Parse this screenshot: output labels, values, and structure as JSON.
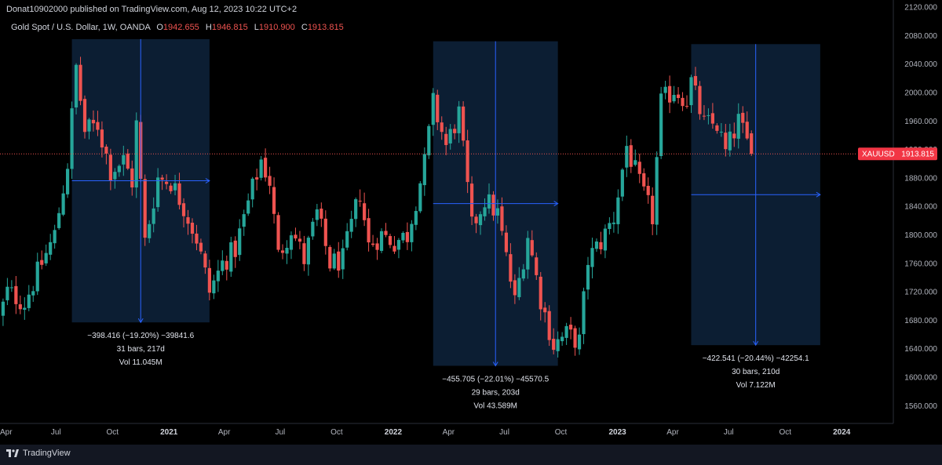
{
  "header": {
    "publisher": "Donat10902000 published on TradingView.com, Aug 12, 2023 10:22 UTC+2"
  },
  "legend": {
    "symbol": "Gold Spot / U.S. Dollar, 1W, OANDA",
    "open_label": "O",
    "open": "1942.655",
    "high_label": "H",
    "high": "1946.815",
    "low_label": "L",
    "low": "1910.900",
    "close_label": "C",
    "close": "1913.815"
  },
  "footer": {
    "brand": "TradingView"
  },
  "colors": {
    "up": "#26a69a",
    "down": "#ef5350",
    "range_fill": "#0c1e33",
    "range_line": "#2962ff"
  },
  "chart_data": {
    "type": "candlestick",
    "price_axis": {
      "range": [
        1535,
        2130
      ],
      "ticks": [
        "2120.000",
        "2080.000",
        "2040.000",
        "2000.000",
        "1960.000",
        "1920.000",
        "1880.000",
        "1840.000",
        "1800.000",
        "1760.000",
        "1720.000",
        "1680.000",
        "1640.000",
        "1600.000",
        "1560.000"
      ]
    },
    "time_axis": {
      "range": [
        "2020-04-01",
        "2024-03-25"
      ],
      "ticks": [
        {
          "date": "2020-04-01",
          "label": "Apr",
          "bold": false
        },
        {
          "date": "2020-07-01",
          "label": "Jul",
          "bold": false
        },
        {
          "date": "2020-10-01",
          "label": "Oct",
          "bold": false
        },
        {
          "date": "2021-01-01",
          "label": "2021",
          "bold": true
        },
        {
          "date": "2021-04-01",
          "label": "Apr",
          "bold": false
        },
        {
          "date": "2021-07-01",
          "label": "Jul",
          "bold": false
        },
        {
          "date": "2021-10-01",
          "label": "Oct",
          "bold": false
        },
        {
          "date": "2022-01-01",
          "label": "2022",
          "bold": true
        },
        {
          "date": "2022-04-01",
          "label": "Apr",
          "bold": false
        },
        {
          "date": "2022-07-01",
          "label": "Jul",
          "bold": false
        },
        {
          "date": "2022-10-01",
          "label": "Oct",
          "bold": false
        },
        {
          "date": "2023-01-01",
          "label": "2023",
          "bold": true
        },
        {
          "date": "2023-04-01",
          "label": "Apr",
          "bold": false
        },
        {
          "date": "2023-07-01",
          "label": "Jul",
          "bold": false
        },
        {
          "date": "2023-10-01",
          "label": "Oct",
          "bold": false
        },
        {
          "date": "2024-01-01",
          "label": "2024",
          "bold": true
        }
      ]
    },
    "price_tag": {
      "symbol": "XAUUSD",
      "value": "1913.815",
      "price": 1913.815
    },
    "path_points": [
      [
        "2020-03-23",
        1660
      ],
      [
        "2020-04-13",
        1720
      ],
      [
        "2020-05-11",
        1705
      ],
      [
        "2020-06-08",
        1760
      ],
      [
        "2020-06-29",
        1800
      ],
      [
        "2020-07-20",
        1900
      ],
      [
        "2020-08-03",
        2035
      ],
      [
        "2020-08-17",
        1945
      ],
      [
        "2020-09-07",
        1955
      ],
      [
        "2020-09-28",
        1890
      ],
      [
        "2020-10-19",
        1905
      ],
      [
        "2020-11-02",
        1875
      ],
      [
        "2020-11-09",
        1955
      ],
      [
        "2020-11-23",
        1790
      ],
      [
        "2020-12-14",
        1880
      ],
      [
        "2021-01-04",
        1875
      ],
      [
        "2021-01-25",
        1840
      ],
      [
        "2021-02-15",
        1795
      ],
      [
        "2021-03-08",
        1720
      ],
      [
        "2021-03-29",
        1760
      ],
      [
        "2021-04-19",
        1780
      ],
      [
        "2021-05-10",
        1845
      ],
      [
        "2021-05-31",
        1905
      ],
      [
        "2021-06-14",
        1875
      ],
      [
        "2021-06-28",
        1770
      ],
      [
        "2021-07-19",
        1810
      ],
      [
        "2021-08-09",
        1765
      ],
      [
        "2021-08-30",
        1830
      ],
      [
        "2021-09-20",
        1760
      ],
      [
        "2021-10-11",
        1765
      ],
      [
        "2021-11-08",
        1860
      ],
      [
        "2021-11-22",
        1785
      ],
      [
        "2021-12-13",
        1800
      ],
      [
        "2022-01-03",
        1790
      ],
      [
        "2022-01-24",
        1800
      ],
      [
        "2022-02-21",
        1900
      ],
      [
        "2022-03-07",
        1985
      ],
      [
        "2022-03-28",
        1925
      ],
      [
        "2022-04-18",
        1970
      ],
      [
        "2022-05-09",
        1810
      ],
      [
        "2022-05-30",
        1850
      ],
      [
        "2022-06-20",
        1830
      ],
      [
        "2022-07-18",
        1705
      ],
      [
        "2022-08-08",
        1800
      ],
      [
        "2022-08-29",
        1710
      ],
      [
        "2022-09-19",
        1645
      ],
      [
        "2022-10-10",
        1660
      ],
      [
        "2022-10-31",
        1650
      ],
      [
        "2022-11-14",
        1765
      ],
      [
        "2022-12-05",
        1790
      ],
      [
        "2022-12-26",
        1825
      ],
      [
        "2023-01-16",
        1925
      ],
      [
        "2023-02-06",
        1870
      ],
      [
        "2023-02-27",
        1825
      ],
      [
        "2023-03-13",
        1985
      ],
      [
        "2023-04-03",
        2005
      ],
      [
        "2023-04-24",
        1990
      ],
      [
        "2023-05-01",
        2015
      ],
      [
        "2023-05-22",
        1955
      ],
      [
        "2023-06-12",
        1955
      ],
      [
        "2023-06-26",
        1915
      ],
      [
        "2023-07-17",
        1960
      ],
      [
        "2023-08-07",
        1913.8
      ]
    ],
    "annotations": [
      {
        "type": "price_range",
        "start": "2020-07-27",
        "end": "2021-03-08",
        "top_price": 2075,
        "bottom_price": 1677,
        "line_1": "−398.416 (−19.20%) −39841.6",
        "line_2": "31 bars, 217d",
        "line_3": "Vol 11.045M"
      },
      {
        "type": "price_range",
        "start": "2022-03-07",
        "end": "2022-09-26",
        "top_price": 2072,
        "bottom_price": 1616,
        "line_1": "−455.705 (−22.01%) −45570.5",
        "line_2": "29 bars, 203d",
        "line_3": "Vol 43.589M"
      },
      {
        "type": "price_range",
        "start": "2023-05-01",
        "end": "2023-11-27",
        "top_price": 2068,
        "bottom_price": 1645,
        "line_1": "−422.541 (−20.44%) −42254.1",
        "line_2": "30 bars, 210d",
        "line_3": "Vol 7.122M"
      }
    ]
  }
}
